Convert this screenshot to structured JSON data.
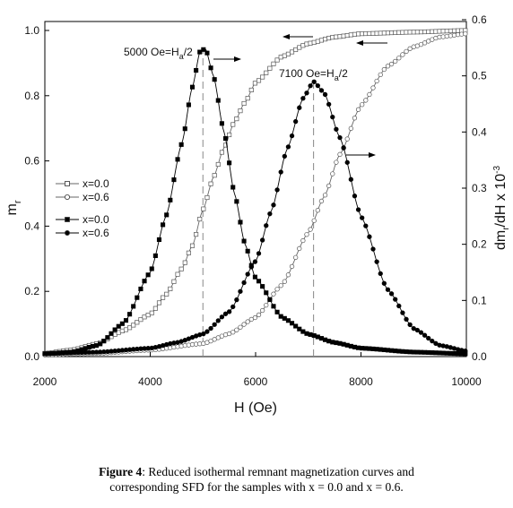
{
  "chart_data": {
    "type": "scatter",
    "title": "",
    "xlabel": "H (Oe)",
    "ylabel_left": "m",
    "ylabel_left_sub": "r",
    "ylabel_right": "dm",
    "ylabel_right_sub": "r",
    "ylabel_right_rest": "/dH x 10",
    "ylabel_right_sup": "-3",
    "xlim": [
      2000,
      10000
    ],
    "ylim_left": [
      0,
      1.0
    ],
    "ylim_right": [
      0,
      0.6
    ],
    "xticks": [
      "2000",
      "4000",
      "6000",
      "8000",
      "10000"
    ],
    "yticks_left": [
      "0.0",
      "0.2",
      "0.4",
      "0.6",
      "0.8",
      "1.0"
    ],
    "yticks_right": [
      "0.0",
      "0.1",
      "0.2",
      "0.3",
      "0.4",
      "0.5",
      "0.6"
    ],
    "grid": false,
    "legend_position": "center-left",
    "series": [
      {
        "name": "x=0.0",
        "marker": "open-square",
        "axis": "left",
        "x": [
          2000,
          2500,
          3000,
          3500,
          4000,
          4300,
          4600,
          4800,
          5000,
          5200,
          5400,
          5600,
          5800,
          6000,
          6500,
          7000,
          7500,
          8000,
          9000,
          10000
        ],
        "values": [
          0.01,
          0.02,
          0.04,
          0.08,
          0.13,
          0.19,
          0.27,
          0.34,
          0.45,
          0.55,
          0.64,
          0.72,
          0.78,
          0.84,
          0.92,
          0.96,
          0.98,
          0.99,
          0.995,
          1.0
        ]
      },
      {
        "name": "x=0.6",
        "marker": "open-circle",
        "axis": "left",
        "x": [
          2000,
          3000,
          4000,
          5000,
          5500,
          6000,
          6500,
          7000,
          7300,
          7600,
          8000,
          8500,
          9000,
          9500,
          10000
        ],
        "values": [
          0.005,
          0.01,
          0.02,
          0.04,
          0.07,
          0.12,
          0.22,
          0.38,
          0.49,
          0.62,
          0.77,
          0.89,
          0.95,
          0.98,
          0.99
        ]
      },
      {
        "name": "x=0.0",
        "marker": "filled-square",
        "axis": "right",
        "x": [
          2000,
          2500,
          3000,
          3500,
          4000,
          4300,
          4600,
          4800,
          4950,
          5050,
          5200,
          5400,
          5600,
          5800,
          6000,
          6500,
          7000,
          7500,
          8000,
          9000,
          10000
        ],
        "values": [
          0.005,
          0.008,
          0.02,
          0.06,
          0.15,
          0.25,
          0.38,
          0.48,
          0.545,
          0.548,
          0.5,
          0.4,
          0.29,
          0.2,
          0.14,
          0.07,
          0.04,
          0.025,
          0.015,
          0.008,
          0.005
        ]
      },
      {
        "name": "x=0.6",
        "marker": "filled-circle",
        "axis": "right",
        "x": [
          2000,
          3000,
          4000,
          4500,
          5000,
          5500,
          6000,
          6300,
          6600,
          6900,
          7100,
          7300,
          7600,
          8000,
          8500,
          9000,
          9500,
          10000
        ],
        "values": [
          0.005,
          0.008,
          0.015,
          0.025,
          0.04,
          0.08,
          0.17,
          0.26,
          0.37,
          0.46,
          0.49,
          0.47,
          0.39,
          0.25,
          0.12,
          0.05,
          0.02,
          0.01
        ]
      }
    ],
    "annotations": [
      {
        "text_main": "5000 Oe=H",
        "text_sub": "a",
        "text_tail": "/2",
        "x": 5000,
        "vline_to_y_right": 0.548
      },
      {
        "text_main": "7100 Oe=H",
        "text_sub": "a",
        "text_tail": "/2",
        "x": 7100,
        "vline_to_y_right": 0.49
      }
    ]
  },
  "caption": {
    "label": "Figure 4",
    "line1": ": Reduced isothermal remnant magnetization curves and",
    "line2": "corresponding SFD for the samples with x = 0.0 and x = 0.6."
  }
}
